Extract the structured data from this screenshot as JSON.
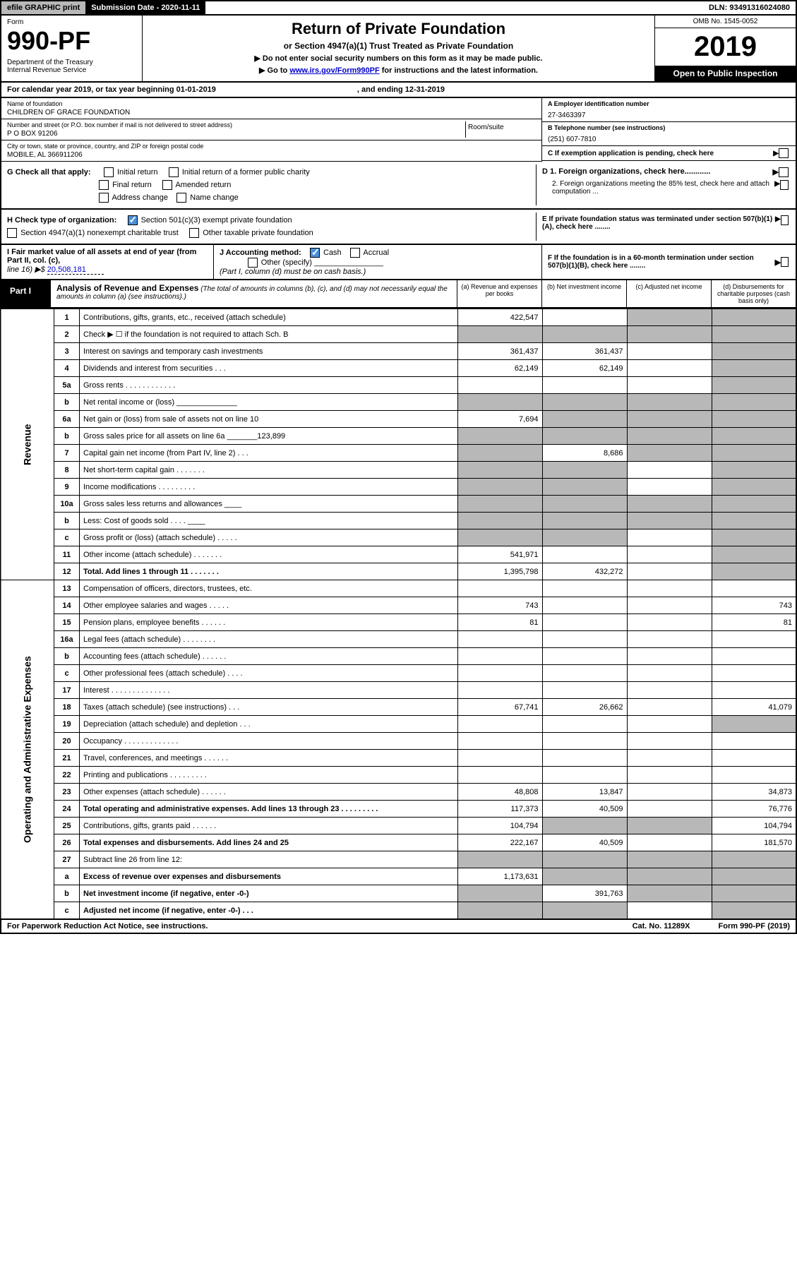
{
  "topbar": {
    "efile": "efile GRAPHIC print",
    "submission": "Submission Date - 2020-11-11",
    "dln": "DLN: 93491316024080"
  },
  "header": {
    "form_label": "Form",
    "form_num": "990-PF",
    "dept": "Department of the Treasury\nInternal Revenue Service",
    "title": "Return of Private Foundation",
    "subtitle": "or Section 4947(a)(1) Trust Treated as Private Foundation",
    "note1": "▶ Do not enter social security numbers on this form as it may be made public.",
    "note2_pre": "▶ Go to ",
    "note2_link": "www.irs.gov/Form990PF",
    "note2_post": " for instructions and the latest information.",
    "omb": "OMB No. 1545-0052",
    "year": "2019",
    "open": "Open to Public Inspection"
  },
  "calyear": {
    "text": "For calendar year 2019, or tax year beginning 01-01-2019",
    "end": ", and ending 12-31-2019"
  },
  "info": {
    "name_lbl": "Name of foundation",
    "name": "CHILDREN OF GRACE FOUNDATION",
    "addr_lbl": "Number and street (or P.O. box number if mail is not delivered to street address)",
    "addr": "P O BOX 91206",
    "room_lbl": "Room/suite",
    "city_lbl": "City or town, state or province, country, and ZIP or foreign postal code",
    "city": "MOBILE, AL  366911206",
    "a_lbl": "A Employer identification number",
    "ein": "27-3463397",
    "b_lbl": "B Telephone number (see instructions)",
    "phone": "(251) 607-7810",
    "c_lbl": "C If exemption application is pending, check here"
  },
  "checks": {
    "g": "G Check all that apply:",
    "g_opts": [
      "Initial return",
      "Initial return of a former public charity",
      "Final return",
      "Amended return",
      "Address change",
      "Name change"
    ],
    "h": "H Check type of organization:",
    "h1": "Section 501(c)(3) exempt private foundation",
    "h2": "Section 4947(a)(1) nonexempt charitable trust",
    "h3": "Other taxable private foundation",
    "d1": "D 1. Foreign organizations, check here............",
    "d2": "2. Foreign organizations meeting the 85% test, check here and attach computation ...",
    "e": "E  If private foundation status was terminated under section 507(b)(1)(A), check here ........",
    "i": "I Fair market value of all assets at end of year (from Part II, col. (c),",
    "i_line": "line 16) ▶$",
    "i_val": "20,508,181",
    "j": "J Accounting method:",
    "j_cash": "Cash",
    "j_accrual": "Accrual",
    "j_other": "Other (specify)",
    "j_note": "(Part I, column (d) must be on cash basis.)",
    "f": "F  If the foundation is in a 60-month termination under section 507(b)(1)(B), check here ........"
  },
  "part1": {
    "tab": "Part I",
    "title": "Analysis of Revenue and Expenses",
    "title_note": "(The total of amounts in columns (b), (c), and (d) may not necessarily equal the amounts in column (a) (see instructions).)",
    "col_a": "(a)   Revenue and expenses per books",
    "col_b": "(b)  Net investment income",
    "col_c": "(c)  Adjusted net income",
    "col_d": "(d)  Disbursements for charitable purposes (cash basis only)"
  },
  "side_labels": {
    "revenue": "Revenue",
    "expenses": "Operating and Administrative Expenses"
  },
  "rows": [
    {
      "n": "1",
      "d": "Contributions, gifts, grants, etc., received (attach schedule)",
      "a": "422,547",
      "b": "",
      "c": "shade",
      "e": "shade"
    },
    {
      "n": "2",
      "d": "Check ▶ ☐ if the foundation is not required to attach Sch. B",
      "a": "shade",
      "b": "shade",
      "c": "shade",
      "e": "shade"
    },
    {
      "n": "3",
      "d": "Interest on savings and temporary cash investments",
      "a": "361,437",
      "b": "361,437",
      "c": "",
      "e": "shade"
    },
    {
      "n": "4",
      "d": "Dividends and interest from securities   .   .   .",
      "a": "62,149",
      "b": "62,149",
      "c": "",
      "e": "shade"
    },
    {
      "n": "5a",
      "d": "Gross rents   .   .   .   .   .   .   .   .   .   .   .   .",
      "a": "",
      "b": "",
      "c": "",
      "e": "shade"
    },
    {
      "n": "b",
      "d": "Net rental income or (loss)  ______________",
      "a": "shade",
      "b": "shade",
      "c": "shade",
      "e": "shade"
    },
    {
      "n": "6a",
      "d": "Net gain or (loss) from sale of assets not on line 10",
      "a": "7,694",
      "b": "shade",
      "c": "shade",
      "e": "shade"
    },
    {
      "n": "b",
      "d": "Gross sales price for all assets on line 6a _______123,899",
      "a": "shade",
      "b": "shade",
      "c": "shade",
      "e": "shade"
    },
    {
      "n": "7",
      "d": "Capital gain net income (from Part IV, line 2)   .   .   .",
      "a": "shade",
      "b": "8,686",
      "c": "shade",
      "e": "shade"
    },
    {
      "n": "8",
      "d": "Net short-term capital gain   .   .   .   .   .   .   .",
      "a": "shade",
      "b": "shade",
      "c": "",
      "e": "shade"
    },
    {
      "n": "9",
      "d": "Income modifications   .   .   .   .   .   .   .   .   .",
      "a": "shade",
      "b": "shade",
      "c": "",
      "e": "shade"
    },
    {
      "n": "10a",
      "d": "Gross sales less returns and allowances  ____",
      "a": "shade",
      "b": "shade",
      "c": "shade",
      "e": "shade"
    },
    {
      "n": "b",
      "d": "Less: Cost of goods sold   .   .   .   .  ____",
      "a": "shade",
      "b": "shade",
      "c": "shade",
      "e": "shade"
    },
    {
      "n": "c",
      "d": "Gross profit or (loss) (attach schedule)   .   .   .   .   .",
      "a": "shade",
      "b": "shade",
      "c": "",
      "e": "shade"
    },
    {
      "n": "11",
      "d": "Other income (attach schedule)   .   .   .   .   .   .   .",
      "a": "541,971",
      "b": "",
      "c": "",
      "e": "shade"
    },
    {
      "n": "12",
      "d": "Total. Add lines 1 through 11   .   .   .   .   .   .   .",
      "bold": true,
      "a": "1,395,798",
      "b": "432,272",
      "c": "",
      "e": "shade"
    },
    {
      "n": "13",
      "d": "Compensation of officers, directors, trustees, etc.",
      "a": "",
      "b": "",
      "c": "",
      "e": ""
    },
    {
      "n": "14",
      "d": "Other employee salaries and wages   .   .   .   .   .",
      "a": "743",
      "b": "",
      "c": "",
      "e": "743"
    },
    {
      "n": "15",
      "d": "Pension plans, employee benefits   .   .   .   .   .   .",
      "a": "81",
      "b": "",
      "c": "",
      "e": "81"
    },
    {
      "n": "16a",
      "d": "Legal fees (attach schedule)   .   .   .   .   .   .   .   .",
      "a": "",
      "b": "",
      "c": "",
      "e": ""
    },
    {
      "n": "b",
      "d": "Accounting fees (attach schedule)   .   .   .   .   .   .",
      "a": "",
      "b": "",
      "c": "",
      "e": ""
    },
    {
      "n": "c",
      "d": "Other professional fees (attach schedule)   .   .   .   .",
      "a": "",
      "b": "",
      "c": "",
      "e": ""
    },
    {
      "n": "17",
      "d": "Interest   .   .   .   .   .   .   .   .   .   .   .   .   .   .",
      "a": "",
      "b": "",
      "c": "",
      "e": ""
    },
    {
      "n": "18",
      "d": "Taxes (attach schedule) (see instructions)   .   .   .",
      "a": "67,741",
      "b": "26,662",
      "c": "",
      "e": "41,079"
    },
    {
      "n": "19",
      "d": "Depreciation (attach schedule) and depletion   .   .   .",
      "a": "",
      "b": "",
      "c": "",
      "e": "shade"
    },
    {
      "n": "20",
      "d": "Occupancy   .   .   .   .   .   .   .   .   .   .   .   .   .",
      "a": "",
      "b": "",
      "c": "",
      "e": ""
    },
    {
      "n": "21",
      "d": "Travel, conferences, and meetings   .   .   .   .   .   .",
      "a": "",
      "b": "",
      "c": "",
      "e": ""
    },
    {
      "n": "22",
      "d": "Printing and publications   .   .   .   .   .   .   .   .   .",
      "a": "",
      "b": "",
      "c": "",
      "e": ""
    },
    {
      "n": "23",
      "d": "Other expenses (attach schedule)   .   .   .   .   .   .",
      "a": "48,808",
      "b": "13,847",
      "c": "",
      "e": "34,873"
    },
    {
      "n": "24",
      "d": "Total operating and administrative expenses. Add lines 13 through 23   .   .   .   .   .   .   .   .   .",
      "bold": true,
      "a": "117,373",
      "b": "40,509",
      "c": "",
      "e": "76,776"
    },
    {
      "n": "25",
      "d": "Contributions, gifts, grants paid   .   .   .   .   .   .",
      "a": "104,794",
      "b": "shade",
      "c": "shade",
      "e": "104,794"
    },
    {
      "n": "26",
      "d": "Total expenses and disbursements. Add lines 24 and 25",
      "bold": true,
      "a": "222,167",
      "b": "40,509",
      "c": "",
      "e": "181,570"
    },
    {
      "n": "27",
      "d": "Subtract line 26 from line 12:",
      "a": "shade",
      "b": "shade",
      "c": "shade",
      "e": "shade"
    },
    {
      "n": "a",
      "d": "Excess of revenue over expenses and disbursements",
      "bold": true,
      "a": "1,173,631",
      "b": "shade",
      "c": "shade",
      "e": "shade"
    },
    {
      "n": "b",
      "d": "Net investment income (if negative, enter -0-)",
      "bold": true,
      "a": "shade",
      "b": "391,763",
      "c": "shade",
      "e": "shade"
    },
    {
      "n": "c",
      "d": "Adjusted net income (if negative, enter -0-)   .   .   .",
      "bold": true,
      "a": "shade",
      "b": "shade",
      "c": "",
      "e": "shade"
    }
  ],
  "footer": {
    "left": "For Paperwork Reduction Act Notice, see instructions.",
    "mid": "Cat. No. 11289X",
    "right": "Form 990-PF (2019)"
  }
}
